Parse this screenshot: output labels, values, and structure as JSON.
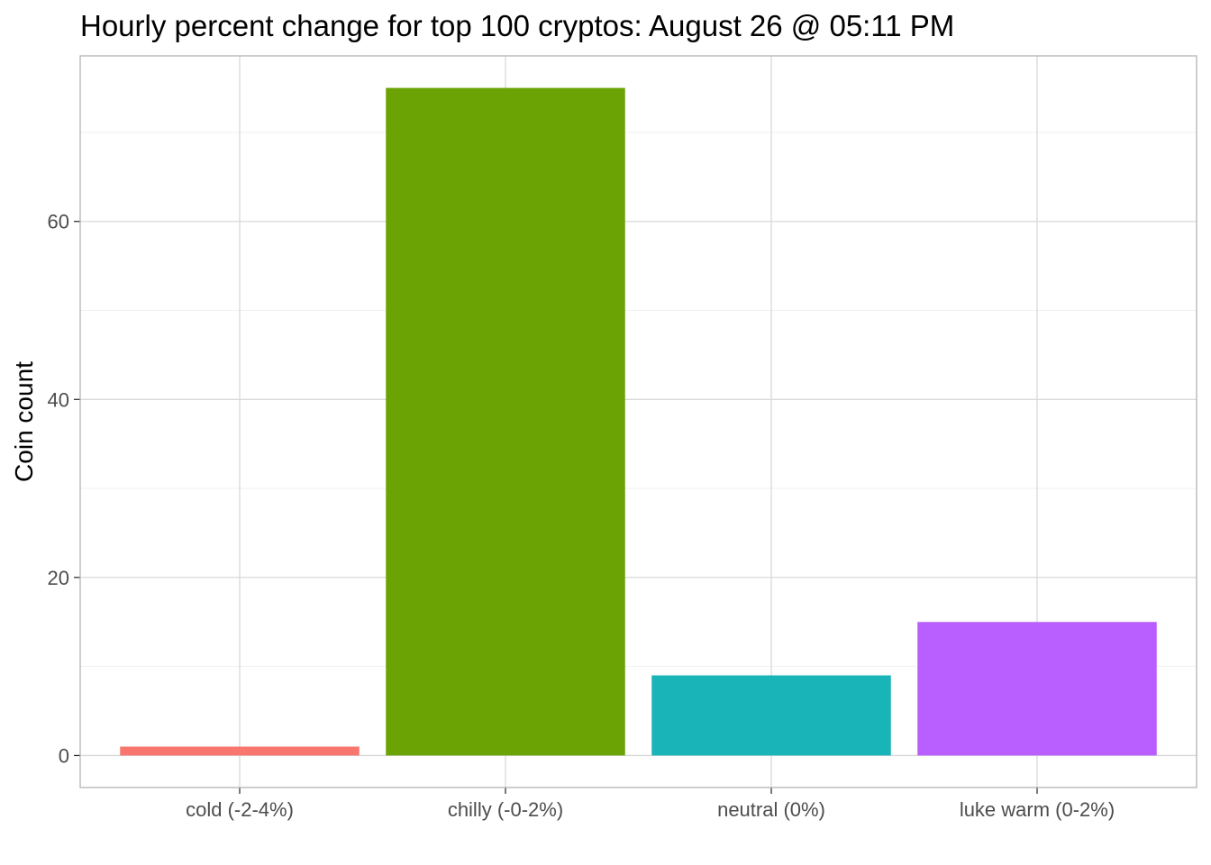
{
  "chart_data": {
    "type": "bar",
    "title": "Hourly percent change for top 100 cryptos: August 26 @ 05:11 PM",
    "xlabel": "",
    "ylabel": "Coin count",
    "categories": [
      "cold (-2-4%)",
      "chilly (-0-2%)",
      "neutral (0%)",
      "luke warm (0-2%)"
    ],
    "values": [
      1,
      75,
      9,
      15
    ],
    "colors": [
      "#F8766D",
      "#6BA304",
      "#19B4B8",
      "#B95EFF"
    ],
    "ylim": [
      -3.6,
      78.6
    ],
    "yticks": [
      0,
      20,
      40,
      60
    ],
    "grid": true,
    "legend": "none"
  }
}
